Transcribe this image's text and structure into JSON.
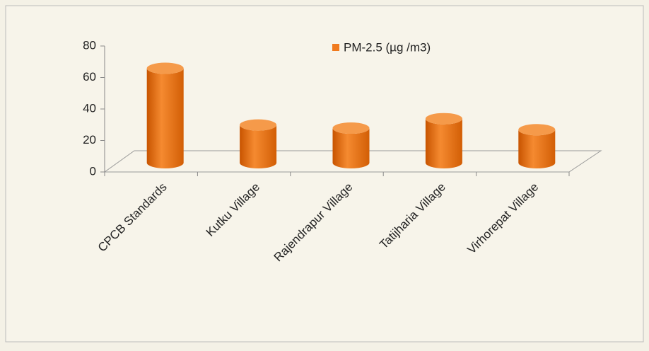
{
  "chart_data": {
    "type": "bar",
    "categories": [
      "CPCB Standards",
      "Kutku Village",
      "Rajendrapur Village",
      "Tatijharia Village",
      "Virhorepat Village"
    ],
    "series": [
      {
        "name": "PM-2.5 (µg /m3)",
        "color": "#f07a1e",
        "values": [
          60,
          24,
          22,
          28,
          21
        ]
      }
    ],
    "ylim": [
      0,
      80
    ],
    "yticks": [
      0,
      20,
      40,
      60,
      80
    ],
    "legend": "top-right"
  }
}
